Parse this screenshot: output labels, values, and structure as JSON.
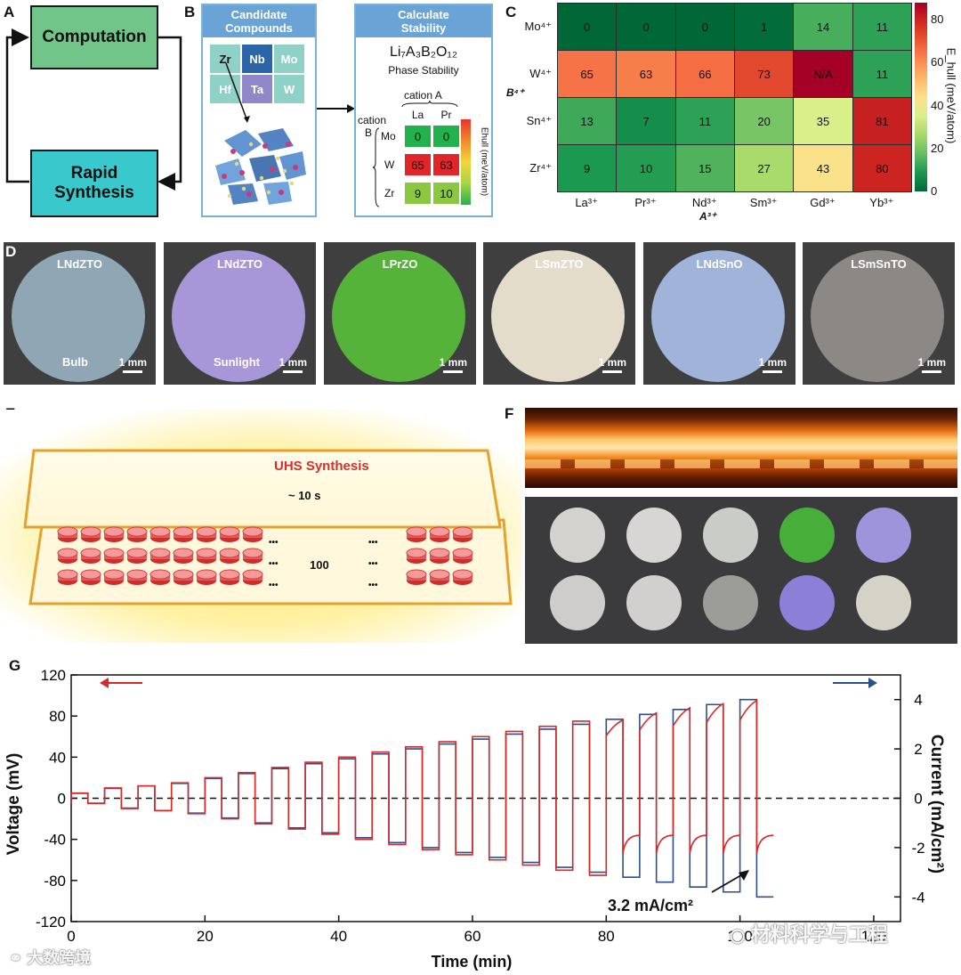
{
  "panel_labels": {
    "a": "A",
    "b": "B",
    "c": "C",
    "d": "D",
    "e": "E",
    "f": "F",
    "g": "G"
  },
  "panel_a": {
    "computation": "Computation",
    "rapid_synthesis_line1": "Rapid",
    "rapid_synthesis_line2": "Synthesis",
    "colors": {
      "computation": "#72c589",
      "synthesis": "#39c9cc"
    }
  },
  "panel_b": {
    "candidate": {
      "title_line1": "Candidate",
      "title_line2": "Compounds",
      "tiles": [
        "Zr",
        "Nb",
        "Mo",
        "Hf",
        "Ta",
        "W"
      ]
    },
    "stability": {
      "title_line1": "Calculate",
      "title_line2": "Stability",
      "formula": "Li₇A₃B₂O₁₂",
      "subtitle": "Phase Stability",
      "cation_a": "cation A",
      "cation_b_line1": "cation",
      "cation_b_line2": "B",
      "cols": [
        "La",
        "Pr"
      ],
      "rows": [
        "Mo",
        "W",
        "Zr"
      ],
      "values": [
        [
          "0",
          "0"
        ],
        [
          "65",
          "63"
        ],
        [
          "9",
          "10"
        ]
      ],
      "colorbar_label": "Ehull (meV/atom)"
    }
  },
  "chart_data": [
    {
      "type": "heatmap",
      "title": "",
      "ylabel": "B⁴⁺",
      "xlabel": "A³⁺",
      "rows": [
        "Mo⁴⁺",
        "W⁴⁺",
        "Sn⁴⁺",
        "Zr⁴⁺"
      ],
      "cols": [
        "La³⁺",
        "Pr³⁺",
        "Nd³⁺",
        "Sm³⁺",
        "Gd³⁺",
        "Yb³⁺"
      ],
      "values": [
        [
          0,
          0,
          0,
          1,
          14,
          11
        ],
        [
          65,
          63,
          66,
          73,
          "N/A",
          11
        ],
        [
          13,
          7,
          11,
          20,
          35,
          81
        ],
        [
          9,
          10,
          15,
          27,
          43,
          80
        ]
      ],
      "colorbar": {
        "label": "E_hull (meV/atom)",
        "min": 0,
        "max": 88,
        "ticks": [
          "0",
          "20",
          "40",
          "60",
          "80"
        ]
      }
    },
    {
      "type": "line",
      "title": "",
      "xlabel": "Time (min)",
      "ylabel": "Voltage (mV)",
      "ylabel_right": "Current (mA/cm²)",
      "xlim": [
        0,
        124
      ],
      "ylim": [
        -120,
        120
      ],
      "ylim_right": [
        -5,
        5
      ],
      "x_ticks": [
        "0",
        "20",
        "40",
        "60",
        "80",
        "100",
        "120"
      ],
      "y_ticks": [
        "120",
        "80",
        "40",
        "0",
        "-40",
        "-80",
        "-120"
      ],
      "y_ticks_right": [
        "4",
        "2",
        "0",
        "-2",
        "-4"
      ],
      "annotation": "3.2 mA/cm²",
      "series": [
        {
          "name": "Voltage",
          "axis": "left",
          "color": "#d42a2a",
          "plateaus": [
            5,
            10,
            12,
            15,
            20,
            25,
            30,
            35,
            40,
            45,
            50,
            55,
            60,
            65,
            70,
            75,
            76,
            83,
            88,
            92,
            95
          ]
        },
        {
          "name": "Current",
          "axis": "right",
          "color": "#2c4f8c",
          "plateaus": [
            0.2,
            0.4,
            0.5,
            0.6,
            0.8,
            1.0,
            1.2,
            1.4,
            1.6,
            1.8,
            2.0,
            2.2,
            2.4,
            2.6,
            2.8,
            3.0,
            3.2,
            3.4,
            3.6,
            3.8,
            4.0
          ]
        }
      ]
    }
  ],
  "panel_d": {
    "samples": [
      {
        "label": "LNdZTO",
        "scale": "1 mm",
        "condition": "Bulb",
        "color": "#8fa6b4"
      },
      {
        "label": "LNdZTO",
        "scale": "1 mm",
        "condition": "Sunlight",
        "color": "#a797d8"
      },
      {
        "label": "LPrZO",
        "scale": "1 mm",
        "condition": "",
        "color": "#56b339"
      },
      {
        "label": "LSmZTO",
        "scale": "1 mm",
        "condition": "",
        "color": "#e3dccb"
      },
      {
        "label": "LNdSnO",
        "scale": "1 mm",
        "condition": "",
        "color": "#9fb4d8"
      },
      {
        "label": "LSmSnTO",
        "scale": "1 mm",
        "condition": "",
        "color": "#8c8886"
      }
    ]
  },
  "panel_e": {
    "title": "UHS Synthesis",
    "time": "~ 10 s",
    "count": "100",
    "ellipsis": "•••"
  },
  "panel_f": {
    "pellet_colors": [
      "#d3d2cf",
      "#d8d6d4",
      "#c9ccc7",
      "#47ae3a",
      "#9d94dc",
      "#cfcdcb",
      "#d2cfcf",
      "#9c9d98",
      "#8c7fd8",
      "#d5d2c8"
    ]
  },
  "watermarks": {
    "right": "材料科学与工程",
    "left": "大数跨境"
  }
}
